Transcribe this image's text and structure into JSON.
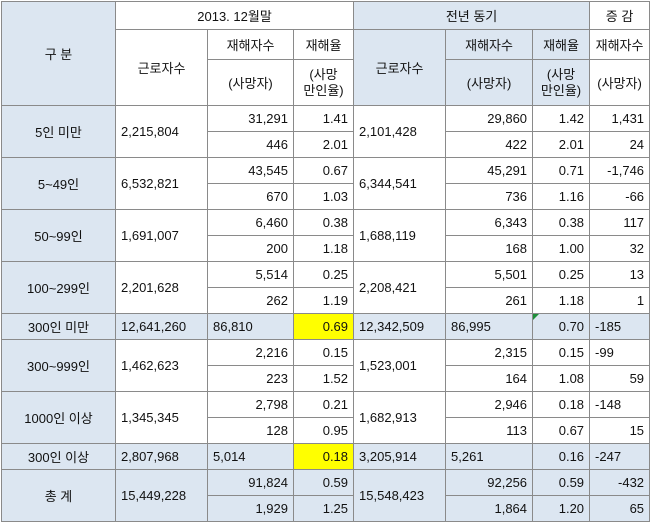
{
  "header": {
    "category": "구 분",
    "period_current": "2013. 12월말",
    "period_previous": "전년 동기",
    "change": "증 감",
    "workers": "근로자수",
    "injured": "재해자수",
    "deaths": "(사망자)",
    "injury_rate": "재해율",
    "death_rate_line1": "(사망",
    "death_rate_line2": "만인율)"
  },
  "rows": [
    {
      "label": "5인 미만",
      "cur_workers": "2,215,804",
      "cur_injured": "31,291",
      "cur_rate": "1.41",
      "cur_deaths": "446",
      "cur_drate": "2.01",
      "prev_workers": "2,101,428",
      "prev_injured": "29,860",
      "prev_rate": "1.42",
      "prev_deaths": "422",
      "prev_drate": "2.01",
      "chg_injured": "1,431",
      "chg_deaths": "24"
    },
    {
      "label": "5~49인",
      "cur_workers": "6,532,821",
      "cur_injured": "43,545",
      "cur_rate": "0.67",
      "cur_deaths": "670",
      "cur_drate": "1.03",
      "prev_workers": "6,344,541",
      "prev_injured": "45,291",
      "prev_rate": "0.71",
      "prev_deaths": "736",
      "prev_drate": "1.16",
      "chg_injured": "-1,746",
      "chg_deaths": "-66"
    },
    {
      "label": "50~99인",
      "cur_workers": "1,691,007",
      "cur_injured": "6,460",
      "cur_rate": "0.38",
      "cur_deaths": "200",
      "cur_drate": "1.18",
      "prev_workers": "1,688,119",
      "prev_injured": "6,343",
      "prev_rate": "0.38",
      "prev_deaths": "168",
      "prev_drate": "1.00",
      "chg_injured": "117",
      "chg_deaths": "32"
    },
    {
      "label": "100~299인",
      "cur_workers": "2,201,628",
      "cur_injured": "5,514",
      "cur_rate": "0.25",
      "cur_deaths": "262",
      "cur_drate": "1.19",
      "prev_workers": "2,208,421",
      "prev_injured": "5,501",
      "prev_rate": "0.25",
      "prev_deaths": "261",
      "prev_drate": "1.18",
      "chg_injured": "13",
      "chg_deaths": "1"
    }
  ],
  "under300": {
    "label": "300인 미만",
    "cur_workers": "12,641,260",
    "cur_injured": "86,810",
    "cur_rate": "0.69",
    "prev_workers": "12,342,509",
    "prev_injured": "86,995",
    "prev_rate": "0.70",
    "chg": "-185"
  },
  "rows2": [
    {
      "label": "300~999인",
      "cur_workers": "1,462,623",
      "cur_injured": "2,216",
      "cur_rate": "0.15",
      "cur_deaths": "223",
      "cur_drate": "1.52",
      "prev_workers": "1,523,001",
      "prev_injured": "2,315",
      "prev_rate": "0.15",
      "prev_deaths": "164",
      "prev_drate": "1.08",
      "chg_injured": "-99",
      "chg_deaths": "59"
    },
    {
      "label": "1000인 이상",
      "cur_workers": "1,345,345",
      "cur_injured": "2,798",
      "cur_rate": "0.21",
      "cur_deaths": "128",
      "cur_drate": "0.95",
      "prev_workers": "1,682,913",
      "prev_injured": "2,946",
      "prev_rate": "0.18",
      "prev_deaths": "113",
      "prev_drate": "0.67",
      "chg_injured": "-148",
      "chg_deaths": "15"
    }
  ],
  "over300": {
    "label": "300인 이상",
    "cur_workers": "2,807,968",
    "cur_injured": "5,014",
    "cur_rate": "0.18",
    "prev_workers": "3,205,914",
    "prev_injured": "5,261",
    "prev_rate": "0.16",
    "chg": "-247"
  },
  "total": {
    "label": "총 계",
    "cur_workers": "15,449,228",
    "cur_injured": "91,824",
    "cur_rate": "0.59",
    "cur_deaths": "1,929",
    "cur_drate": "1.25",
    "prev_workers": "15,548,423",
    "prev_injured": "92,256",
    "prev_rate": "0.59",
    "prev_deaths": "1,864",
    "prev_drate": "1.20",
    "chg_injured": "-432",
    "chg_deaths": "65"
  },
  "colors": {
    "header_bg": "#dce6f1",
    "highlight": "#ffff00",
    "border": "#8a8a8a",
    "comment_marker": "#1f8f3a"
  }
}
